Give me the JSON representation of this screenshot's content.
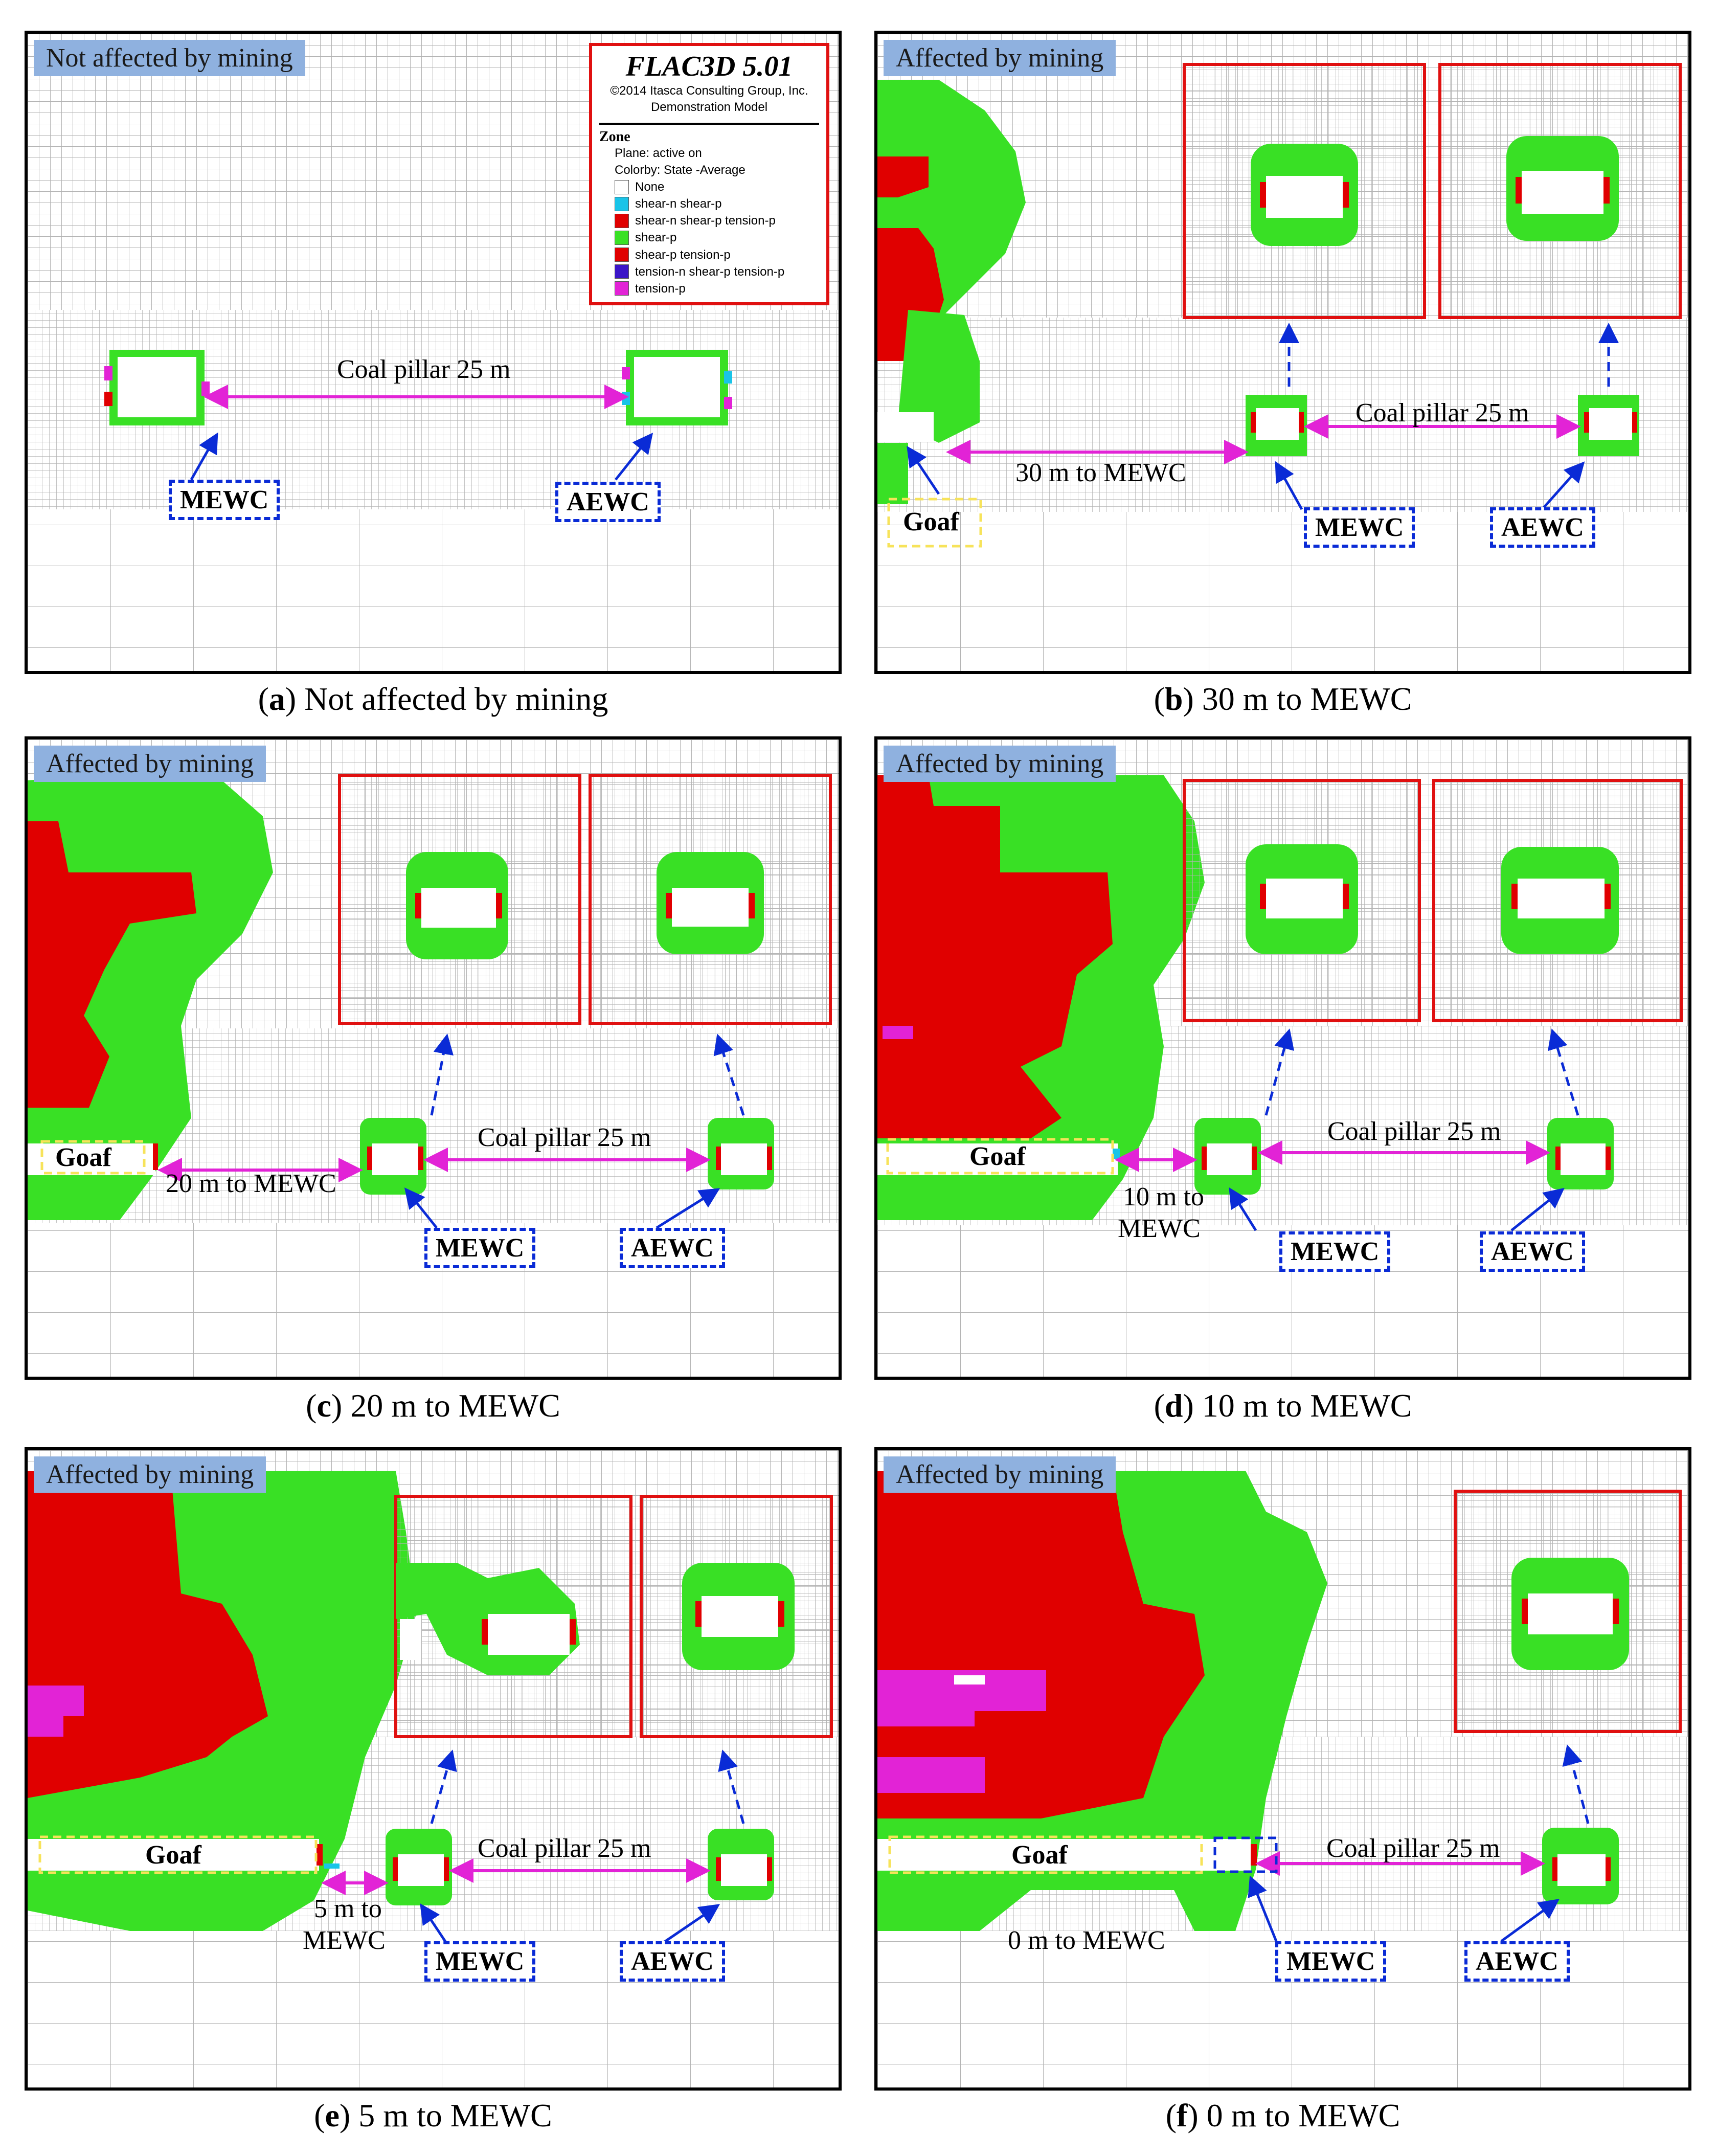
{
  "colors": {
    "grid_line": "#b4b4b4",
    "green": "#39e025",
    "red": "#e00000",
    "magenta": "#e223d6",
    "cyan": "#19c4e8",
    "purple": "#3b16c8",
    "inset_border": "#e01010",
    "dashed_box": "#0a2bd6",
    "goaf_box": "#f7e35a",
    "arrow_magenta": "#e223d6",
    "arrow_blue": "#0a2bd6",
    "status_tag": "#8fb1df"
  },
  "legend": {
    "title": "FLAC3D 5.01",
    "copyright": "©2014 Itasca Consulting Group, Inc.",
    "model": "Demonstration Model",
    "heading": "Zone",
    "plane": "Plane: active on",
    "colorby": "Colorby: State  -Average",
    "items": [
      {
        "label": "None",
        "color": "#ffffff"
      },
      {
        "label": "shear-n shear-p",
        "color": "#19c4e8"
      },
      {
        "label": "shear-n shear-p tension-p",
        "color": "#e00000"
      },
      {
        "label": "shear-p",
        "color": "#39e025"
      },
      {
        "label": "shear-p tension-p",
        "color": "#e00000"
      },
      {
        "label": "tension-n shear-p tension-p",
        "color": "#3b16c8"
      },
      {
        "label": "tension-p",
        "color": "#e223d6"
      }
    ]
  },
  "panels": [
    {
      "id": "a",
      "caption_letter": "a",
      "caption_text": " Not affected by mining",
      "status": "Not affected by mining",
      "pillar_label": "Coal pillar 25 m",
      "mewc": "MEWC",
      "aewc": "AEWC"
    },
    {
      "id": "b",
      "caption_letter": "b",
      "caption_text": " 30 m to MEWC",
      "status": "Affected by mining",
      "pillar_label": "Coal pillar 25 m",
      "distance_label": "30 m to MEWC",
      "goaf": "Goaf",
      "mewc": "MEWC",
      "aewc": "AEWC"
    },
    {
      "id": "c",
      "caption_letter": "c",
      "caption_text": " 20 m to MEWC",
      "status": "Affected by mining",
      "pillar_label": "Coal pillar 25 m",
      "distance_label": "20 m to MEWC",
      "goaf": "Goaf",
      "mewc": "MEWC",
      "aewc": "AEWC"
    },
    {
      "id": "d",
      "caption_letter": "d",
      "caption_text": " 10 m to MEWC",
      "status": "Affected by mining",
      "pillar_label": "Coal pillar 25 m",
      "distance_label_1": "10 m to",
      "distance_label_2": "MEWC",
      "goaf": "Goaf",
      "mewc": "MEWC",
      "aewc": "AEWC"
    },
    {
      "id": "e",
      "caption_letter": "e",
      "caption_text": " 5 m to MEWC",
      "status": "Affected by mining",
      "pillar_label": "Coal pillar 25 m",
      "distance_label_1": "5 m to",
      "distance_label_2": "MEWC",
      "goaf": "Goaf",
      "mewc": "MEWC",
      "aewc": "AEWC"
    },
    {
      "id": "f",
      "caption_letter": "f",
      "caption_text": " 0 m to MEWC",
      "status": "Affected by mining",
      "pillar_label": "Coal pillar 25 m",
      "distance_label": "0 m to MEWC",
      "goaf": "Goaf",
      "mewc": "MEWC",
      "aewc": "AEWC"
    }
  ]
}
